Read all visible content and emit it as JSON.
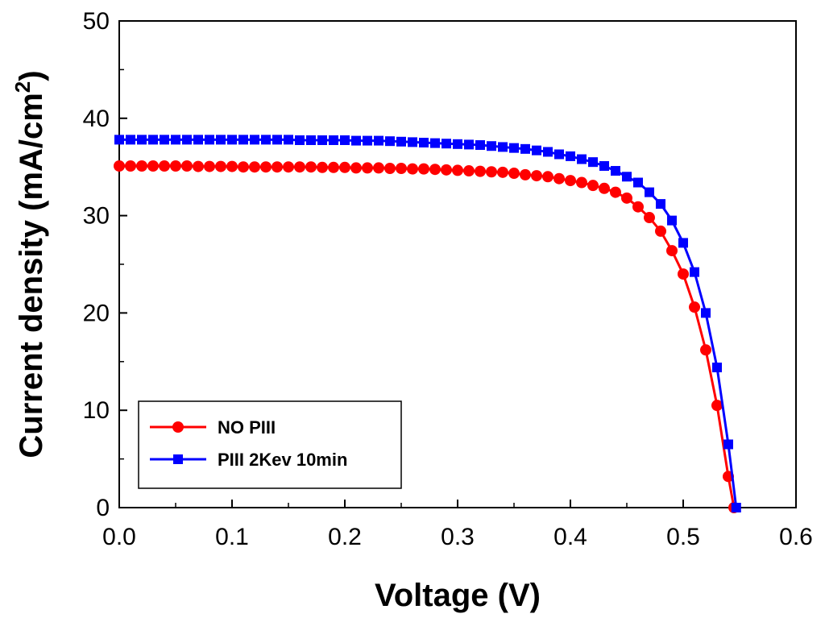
{
  "chart_data": {
    "type": "line",
    "xlabel": "Voltage (V)",
    "ylabel": "Current density (mA/cm",
    "ylabel_sup": "2",
    "ylabel_close": ")",
    "xlim": [
      0.0,
      0.6
    ],
    "ylim": [
      0,
      50
    ],
    "xticks": [
      0.0,
      0.1,
      0.2,
      0.3,
      0.4,
      0.5,
      0.6
    ],
    "xtick_labels": [
      "0.0",
      "0.1",
      "0.2",
      "0.3",
      "0.4",
      "0.5",
      "0.6"
    ],
    "yticks": [
      0,
      10,
      20,
      30,
      40,
      50
    ],
    "ytick_labels": [
      "0",
      "10",
      "20",
      "30",
      "40",
      "50"
    ],
    "grid": false,
    "legend_position": "bottom-left",
    "series": [
      {
        "name": "NO PIII",
        "color": "#ff0000",
        "marker": "circle",
        "x": [
          0.0,
          0.01,
          0.02,
          0.03,
          0.04,
          0.05,
          0.06,
          0.07,
          0.08,
          0.09,
          0.1,
          0.11,
          0.12,
          0.13,
          0.14,
          0.15,
          0.16,
          0.17,
          0.18,
          0.19,
          0.2,
          0.21,
          0.22,
          0.23,
          0.24,
          0.25,
          0.26,
          0.27,
          0.28,
          0.29,
          0.3,
          0.31,
          0.32,
          0.33,
          0.34,
          0.35,
          0.36,
          0.37,
          0.38,
          0.39,
          0.4,
          0.41,
          0.42,
          0.43,
          0.44,
          0.45,
          0.46,
          0.47,
          0.48,
          0.49,
          0.5,
          0.51,
          0.52,
          0.53,
          0.54,
          0.545
        ],
        "y": [
          35.1,
          35.1,
          35.1,
          35.1,
          35.1,
          35.1,
          35.1,
          35.05,
          35.05,
          35.05,
          35.05,
          35.0,
          35.0,
          35.0,
          35.0,
          35.0,
          35.0,
          35.0,
          34.95,
          34.95,
          34.95,
          34.9,
          34.9,
          34.9,
          34.85,
          34.85,
          34.8,
          34.8,
          34.75,
          34.7,
          34.65,
          34.6,
          34.55,
          34.5,
          34.45,
          34.35,
          34.2,
          34.1,
          34.0,
          33.8,
          33.6,
          33.4,
          33.1,
          32.8,
          32.4,
          31.8,
          30.9,
          29.8,
          28.4,
          26.4,
          24.0,
          20.6,
          16.2,
          10.5,
          3.2,
          0.0
        ]
      },
      {
        "name": "PIII 2Kev 10min",
        "color": "#0000ff",
        "marker": "square",
        "x": [
          0.0,
          0.01,
          0.02,
          0.03,
          0.04,
          0.05,
          0.06,
          0.07,
          0.08,
          0.09,
          0.1,
          0.11,
          0.12,
          0.13,
          0.14,
          0.15,
          0.16,
          0.17,
          0.18,
          0.19,
          0.2,
          0.21,
          0.22,
          0.23,
          0.24,
          0.25,
          0.26,
          0.27,
          0.28,
          0.29,
          0.3,
          0.31,
          0.32,
          0.33,
          0.34,
          0.35,
          0.36,
          0.37,
          0.38,
          0.39,
          0.4,
          0.41,
          0.42,
          0.43,
          0.44,
          0.45,
          0.46,
          0.47,
          0.48,
          0.49,
          0.5,
          0.51,
          0.52,
          0.53,
          0.54,
          0.547
        ],
        "y": [
          37.8,
          37.8,
          37.8,
          37.8,
          37.8,
          37.8,
          37.8,
          37.8,
          37.8,
          37.8,
          37.8,
          37.8,
          37.8,
          37.8,
          37.8,
          37.8,
          37.75,
          37.75,
          37.75,
          37.75,
          37.75,
          37.7,
          37.7,
          37.7,
          37.65,
          37.6,
          37.55,
          37.5,
          37.45,
          37.4,
          37.35,
          37.3,
          37.25,
          37.15,
          37.05,
          36.95,
          36.85,
          36.7,
          36.55,
          36.3,
          36.1,
          35.8,
          35.5,
          35.1,
          34.6,
          34.0,
          33.4,
          32.4,
          31.2,
          29.5,
          27.2,
          24.2,
          20.0,
          14.4,
          6.5,
          0.0
        ]
      }
    ]
  }
}
